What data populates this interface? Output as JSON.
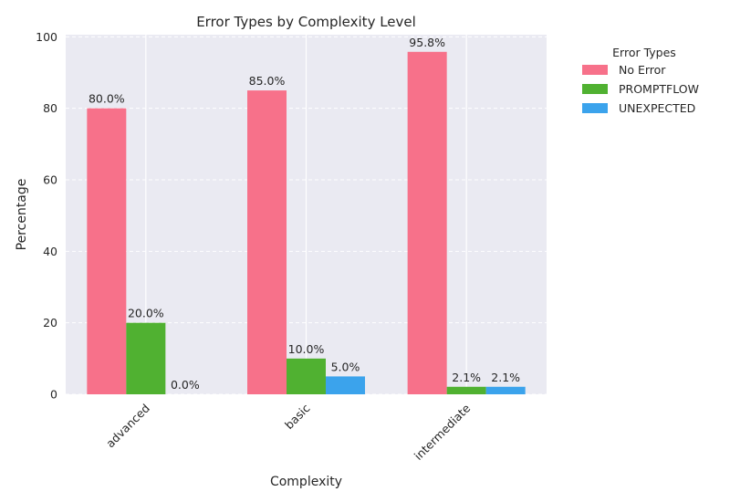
{
  "chart_data": {
    "type": "bar",
    "title": "Error Types by Complexity Level",
    "xlabel": "Complexity",
    "ylabel": "Percentage",
    "categories": [
      "advanced",
      "basic",
      "intermediate"
    ],
    "series": [
      {
        "name": "No Error",
        "values": [
          80.0,
          85.0,
          95.8
        ],
        "labels": [
          "80.0%",
          "85.0%",
          "95.8%"
        ],
        "color": "#f7718a"
      },
      {
        "name": "PROMPTFLOW",
        "values": [
          20.0,
          10.0,
          2.1
        ],
        "labels": [
          "20.0%",
          "10.0%",
          "2.1%"
        ],
        "color": "#50b131"
      },
      {
        "name": "UNEXPECTED",
        "values": [
          0.0,
          5.0,
          2.1
        ],
        "labels": [
          "0.0%",
          "5.0%",
          "2.1%"
        ],
        "color": "#3ba3ec"
      }
    ],
    "yticks": [
      "0",
      "20",
      "40",
      "60",
      "80",
      "100"
    ],
    "ylim": [
      0,
      100.6
    ],
    "grid": true,
    "legend": {
      "title": "Error Types",
      "placement": "outside-right"
    },
    "background_color": "#eaeaf2"
  }
}
